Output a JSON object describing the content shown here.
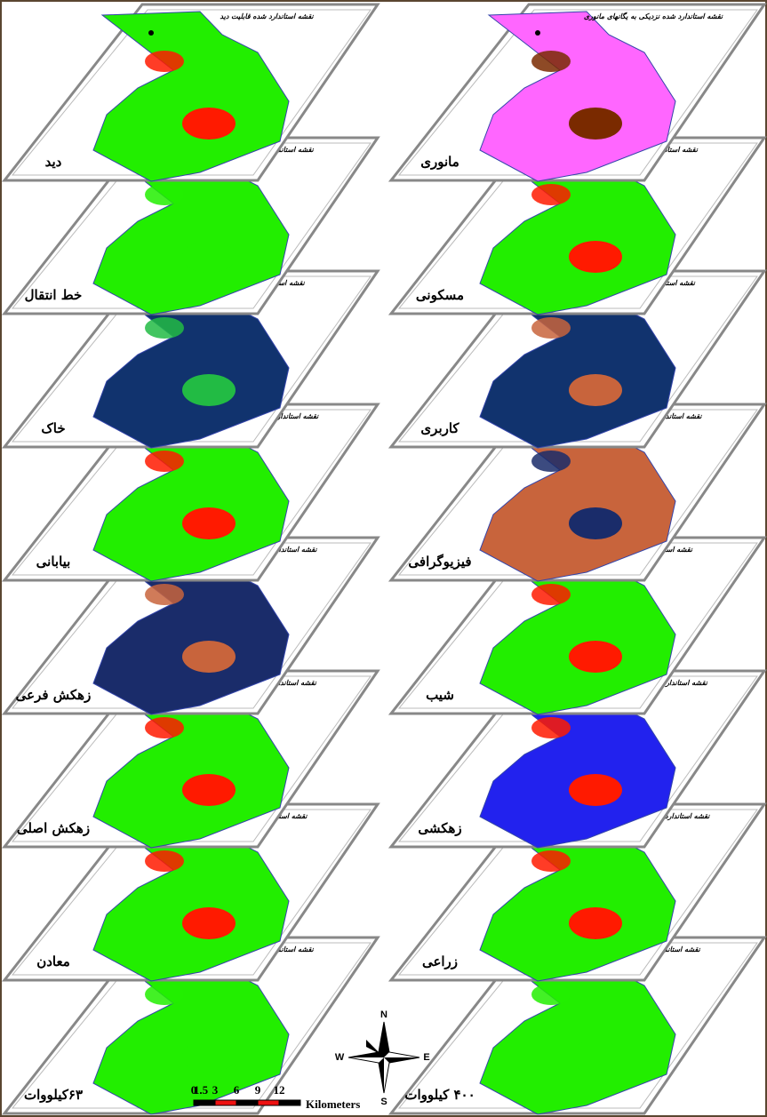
{
  "layers": {
    "left": [
      {
        "label": "دید",
        "title": "نقشه استاندارد شده قابلیت دید",
        "base": "#22ee00",
        "accent": "#ff1a00"
      },
      {
        "label": "خط انتقال",
        "title": "نقشه استاندارد شده خط انتقال",
        "base": "#22ee00",
        "accent": "#22ee00"
      },
      {
        "label": "خاک",
        "title": "نقشه استاندارد شده خاک",
        "base": "#11336e",
        "accent": "#22bb44"
      },
      {
        "label": "بیابانی",
        "title": "نقشه استاندارد شده مناطق بیابانی",
        "base": "#22ee00",
        "accent": "#ff1a00"
      },
      {
        "label": "زهکش فرعی",
        "title": "نقشه استاندارد شده آبراهه فرعی",
        "base": "#1a2c6a",
        "accent": "#c8643c"
      },
      {
        "label": "زهکش اصلی",
        "title": "نقشه استاندارد شده آبراهه اصلی",
        "base": "#22ee00",
        "accent": "#ff1a00"
      },
      {
        "label": "معادن",
        "title": "نقشه استاندارد شده معادن",
        "base": "#22ee00",
        "accent": "#ff1a00"
      },
      {
        "label": "۶۳کیلووات",
        "title": "نقشه استاندارد شده خط انتقال",
        "base": "#22ee00",
        "accent": "#22ee00"
      }
    ],
    "right": [
      {
        "label": "مانوری",
        "title": "نقشه استاندارد شده نزدیکی به یگانهای مانوری",
        "base": "#ff66ff",
        "accent": "#7a2a00"
      },
      {
        "label": "مسکونی",
        "title": "نقشه استاندارد شده مسکونی",
        "base": "#22ee00",
        "accent": "#ff1a00"
      },
      {
        "label": "کاربری",
        "title": "نقشه استاندارد شده کاربری",
        "base": "#11336e",
        "accent": "#c8643c"
      },
      {
        "label": "فیزیوگرافی",
        "title": "نقشه استاندارد شده فیزیوگرافی",
        "base": "#c8643c",
        "accent": "#1a2c6a"
      },
      {
        "label": "شیب",
        "title": "نقشه استاندارد شده شیب",
        "base": "#22ee00",
        "accent": "#ff1a00"
      },
      {
        "label": "زهکشی",
        "title": "نقشه استاندارد شده زهکشی منطقه",
        "base": "#2222ee",
        "accent": "#ff1a00"
      },
      {
        "label": "زراعی",
        "title": "نقشه استاندارد شده اراضی کشاورزی",
        "base": "#22ee00",
        "accent": "#ff1a00"
      },
      {
        "label": "۴۰۰ کیلووات",
        "title": "نقشه استاندارد شده خط انتقال",
        "base": "#22ee00",
        "accent": "#22ee00"
      }
    ]
  },
  "scale": {
    "ticks": [
      "0",
      "1.5",
      "3",
      "6",
      "9",
      "12"
    ],
    "unit": "Kilometers"
  },
  "compass": {
    "n": "N",
    "s": "S",
    "e": "E",
    "w": "W"
  }
}
